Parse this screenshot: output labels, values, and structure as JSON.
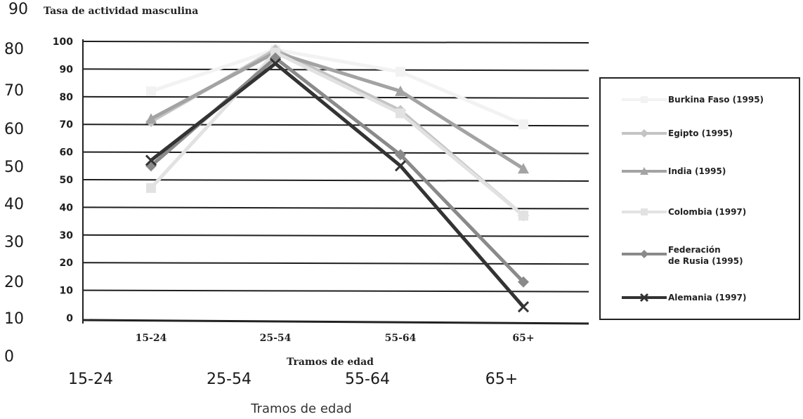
{
  "outer_axis": {
    "title": "90",
    "yticks": [
      "80",
      "70",
      "60",
      "50",
      "40",
      "30",
      "20",
      "10",
      "0"
    ],
    "xticks": [
      "15-24",
      "25-54",
      "55-64",
      "65+"
    ],
    "xlabel": "Tramos de edad"
  },
  "chart_data": {
    "type": "line",
    "title": "Tasa de actividad masculina",
    "xlabel": "Tramos de edad",
    "ylabel": "",
    "categories": [
      "15-24",
      "25-54",
      "55-64",
      "65+"
    ],
    "ylim": [
      0,
      100
    ],
    "yticks": [
      0,
      10,
      20,
      30,
      40,
      50,
      60,
      70,
      80,
      90,
      100
    ],
    "grid": true,
    "legend_position": "right",
    "series": [
      {
        "name": "Burkina Faso (1995)",
        "values": [
          82,
          97,
          89,
          70
        ],
        "color": "#f2f2f2",
        "marker": "square"
      },
      {
        "name": "Egipto (1995)",
        "values": [
          71,
          97,
          75,
          37
        ],
        "color": "#c4c4c4",
        "marker": "diamond"
      },
      {
        "name": "India (1995)",
        "values": [
          72,
          96,
          82,
          54
        ],
        "color": "#a3a3a3",
        "marker": "triangle"
      },
      {
        "name": "Colombia (1997)",
        "values": [
          47,
          96,
          74,
          37
        ],
        "color": "#e2e2e2",
        "marker": "square"
      },
      {
        "name": "Federación\nde Rusia (1995)",
        "values": [
          55,
          94,
          59,
          13
        ],
        "color": "#8a8a8a",
        "marker": "diamond"
      },
      {
        "name": "Alemania (1997)",
        "values": [
          57,
          92,
          55,
          4
        ],
        "color": "#333333",
        "marker": "x"
      }
    ]
  }
}
